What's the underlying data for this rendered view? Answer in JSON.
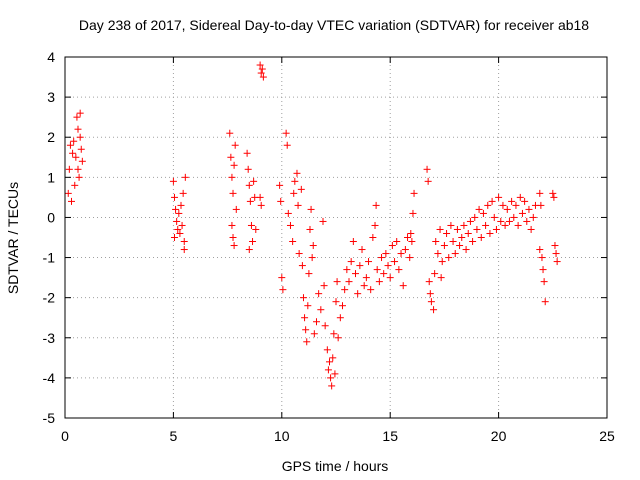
{
  "chart_data": {
    "type": "scatter",
    "title": "Day 238 of 2017, Sidereal Day-to-day VTEC variation (SDTVAR) for receiver ab18",
    "xlabel": "GPS time / hours",
    "ylabel": "SDTVAR / TECUs",
    "xlim": [
      0,
      25
    ],
    "ylim": [
      -5,
      4
    ],
    "xticks": [
      "0",
      "5",
      "10",
      "15",
      "20",
      "25"
    ],
    "yticks": [
      "-5",
      "-4",
      "-3",
      "-2",
      "-1",
      "0",
      "1",
      "2",
      "3",
      "4"
    ],
    "grid": true,
    "marker": "+",
    "color": "#ff0000",
    "series": [
      {
        "name": "SDTVAR",
        "points": [
          [
            0.15,
            0.6
          ],
          [
            0.2,
            1.2
          ],
          [
            0.25,
            1.8
          ],
          [
            0.3,
            0.4
          ],
          [
            0.35,
            1.6
          ],
          [
            0.4,
            1.9
          ],
          [
            0.45,
            0.8
          ],
          [
            0.5,
            1.5
          ],
          [
            0.55,
            2.5
          ],
          [
            0.6,
            2.2
          ],
          [
            0.65,
            1.0
          ],
          [
            0.7,
            2.0
          ],
          [
            0.75,
            1.7
          ],
          [
            0.8,
            1.4
          ],
          [
            0.7,
            2.6
          ],
          [
            0.6,
            1.2
          ],
          [
            5.0,
            0.9
          ],
          [
            5.05,
            0.5
          ],
          [
            5.1,
            0.2
          ],
          [
            5.15,
            -0.1
          ],
          [
            5.2,
            -0.3
          ],
          [
            5.25,
            0.1
          ],
          [
            5.3,
            -0.4
          ],
          [
            5.35,
            0.3
          ],
          [
            5.4,
            -0.2
          ],
          [
            5.45,
            0.6
          ],
          [
            5.5,
            -0.6
          ],
          [
            5.55,
            1.0
          ],
          [
            5.5,
            -0.8
          ],
          [
            5.05,
            -0.5
          ],
          [
            7.6,
            2.1
          ],
          [
            7.65,
            1.5
          ],
          [
            7.7,
            1.0
          ],
          [
            7.75,
            0.6
          ],
          [
            7.8,
            1.3
          ],
          [
            7.85,
            1.8
          ],
          [
            7.7,
            -0.2
          ],
          [
            7.75,
            -0.5
          ],
          [
            7.8,
            -0.7
          ],
          [
            7.9,
            0.2
          ],
          [
            8.4,
            1.6
          ],
          [
            8.45,
            1.2
          ],
          [
            8.5,
            0.8
          ],
          [
            8.55,
            0.4
          ],
          [
            8.6,
            -0.2
          ],
          [
            8.65,
            -0.6
          ],
          [
            8.7,
            0.9
          ],
          [
            8.75,
            0.5
          ],
          [
            8.8,
            -0.3
          ],
          [
            8.5,
            -0.8
          ],
          [
            9.0,
            3.8
          ],
          [
            9.05,
            3.6
          ],
          [
            9.1,
            3.7
          ],
          [
            9.15,
            3.5
          ],
          [
            9.0,
            0.5
          ],
          [
            9.05,
            0.3
          ],
          [
            9.9,
            0.8
          ],
          [
            9.95,
            0.4
          ],
          [
            10.0,
            -1.5
          ],
          [
            10.05,
            -1.8
          ],
          [
            10.2,
            2.1
          ],
          [
            10.25,
            1.8
          ],
          [
            10.3,
            0.1
          ],
          [
            10.4,
            -0.2
          ],
          [
            10.5,
            -0.6
          ],
          [
            10.55,
            0.6
          ],
          [
            10.6,
            0.9
          ],
          [
            10.7,
            1.1
          ],
          [
            10.75,
            0.3
          ],
          [
            10.8,
            -0.9
          ],
          [
            10.9,
            0.7
          ],
          [
            10.95,
            -1.2
          ],
          [
            11.0,
            -2.0
          ],
          [
            11.05,
            -2.5
          ],
          [
            11.1,
            -2.8
          ],
          [
            11.15,
            -3.1
          ],
          [
            11.2,
            -2.2
          ],
          [
            11.25,
            -1.4
          ],
          [
            11.3,
            -0.3
          ],
          [
            11.35,
            0.2
          ],
          [
            11.4,
            -1.0
          ],
          [
            11.45,
            -0.7
          ],
          [
            11.5,
            -2.9
          ],
          [
            11.6,
            -2.6
          ],
          [
            11.7,
            -1.9
          ],
          [
            11.8,
            -2.3
          ],
          [
            11.9,
            -0.1
          ],
          [
            11.95,
            -1.7
          ],
          [
            12.0,
            -2.7
          ],
          [
            12.1,
            -3.3
          ],
          [
            12.15,
            -3.8
          ],
          [
            12.2,
            -3.6
          ],
          [
            12.25,
            -4.0
          ],
          [
            12.3,
            -4.2
          ],
          [
            12.35,
            -3.5
          ],
          [
            12.4,
            -2.9
          ],
          [
            12.45,
            -3.9
          ],
          [
            12.5,
            -2.1
          ],
          [
            12.55,
            -1.6
          ],
          [
            12.6,
            -3.0
          ],
          [
            12.7,
            -2.5
          ],
          [
            12.8,
            -2.2
          ],
          [
            12.9,
            -1.8
          ],
          [
            13.0,
            -1.3
          ],
          [
            13.1,
            -1.6
          ],
          [
            13.2,
            -1.1
          ],
          [
            13.3,
            -0.6
          ],
          [
            13.4,
            -1.4
          ],
          [
            13.5,
            -1.9
          ],
          [
            13.6,
            -1.2
          ],
          [
            13.7,
            -0.8
          ],
          [
            13.8,
            -1.7
          ],
          [
            13.9,
            -1.5
          ],
          [
            14.0,
            -1.1
          ],
          [
            14.1,
            -1.8
          ],
          [
            14.2,
            -0.5
          ],
          [
            14.3,
            -0.2
          ],
          [
            14.35,
            0.3
          ],
          [
            14.4,
            -1.3
          ],
          [
            14.5,
            -1.6
          ],
          [
            14.6,
            -1.0
          ],
          [
            14.7,
            -1.4
          ],
          [
            14.8,
            -0.9
          ],
          [
            14.9,
            -1.2
          ],
          [
            15.0,
            -1.5
          ],
          [
            15.1,
            -0.7
          ],
          [
            15.2,
            -1.1
          ],
          [
            15.3,
            -0.6
          ],
          [
            15.4,
            -1.3
          ],
          [
            15.5,
            -0.9
          ],
          [
            15.6,
            -1.7
          ],
          [
            15.7,
            -0.8
          ],
          [
            15.8,
            -0.5
          ],
          [
            15.9,
            -1.0
          ],
          [
            15.95,
            -0.4
          ],
          [
            16.0,
            -0.6
          ],
          [
            16.05,
            0.1
          ],
          [
            16.1,
            0.6
          ],
          [
            16.7,
            1.2
          ],
          [
            16.75,
            0.9
          ],
          [
            16.8,
            -1.6
          ],
          [
            16.85,
            -1.9
          ],
          [
            16.9,
            -2.1
          ],
          [
            17.0,
            -2.3
          ],
          [
            17.05,
            -1.4
          ],
          [
            17.1,
            -0.6
          ],
          [
            17.2,
            -0.9
          ],
          [
            17.3,
            -0.3
          ],
          [
            17.35,
            -1.5
          ],
          [
            17.4,
            -1.1
          ],
          [
            17.5,
            -0.7
          ],
          [
            17.6,
            -0.4
          ],
          [
            17.7,
            -1.0
          ],
          [
            17.8,
            -0.2
          ],
          [
            17.9,
            -0.6
          ],
          [
            18.0,
            -0.9
          ],
          [
            18.1,
            -0.3
          ],
          [
            18.2,
            -0.7
          ],
          [
            18.3,
            -0.5
          ],
          [
            18.4,
            -0.2
          ],
          [
            18.5,
            -0.8
          ],
          [
            18.6,
            -0.4
          ],
          [
            18.7,
            -0.1
          ],
          [
            18.8,
            -0.6
          ],
          [
            18.9,
            0.0
          ],
          [
            19.0,
            -0.3
          ],
          [
            19.1,
            0.2
          ],
          [
            19.2,
            -0.5
          ],
          [
            19.3,
            0.1
          ],
          [
            19.4,
            -0.2
          ],
          [
            19.5,
            0.3
          ],
          [
            19.6,
            -0.4
          ],
          [
            19.7,
            0.4
          ],
          [
            19.8,
            0.0
          ],
          [
            19.9,
            -0.3
          ],
          [
            20.0,
            0.5
          ],
          [
            20.1,
            -0.1
          ],
          [
            20.2,
            0.3
          ],
          [
            20.3,
            -0.2
          ],
          [
            20.4,
            0.2
          ],
          [
            20.5,
            -0.1
          ],
          [
            20.6,
            0.4
          ],
          [
            20.7,
            0.0
          ],
          [
            20.8,
            0.3
          ],
          [
            20.9,
            -0.2
          ],
          [
            21.0,
            0.5
          ],
          [
            21.1,
            0.1
          ],
          [
            21.2,
            0.4
          ],
          [
            21.3,
            -0.1
          ],
          [
            21.4,
            0.2
          ],
          [
            21.5,
            -0.3
          ],
          [
            21.6,
            0.0
          ],
          [
            21.7,
            0.3
          ],
          [
            21.9,
            0.6
          ],
          [
            21.95,
            0.3
          ],
          [
            22.0,
            -1.0
          ],
          [
            22.05,
            -1.3
          ],
          [
            22.1,
            -1.6
          ],
          [
            22.15,
            -2.1
          ],
          [
            21.9,
            -0.8
          ],
          [
            22.5,
            0.6
          ],
          [
            22.55,
            0.5
          ],
          [
            22.6,
            -0.7
          ],
          [
            22.65,
            -0.9
          ],
          [
            22.7,
            -1.1
          ]
        ]
      }
    ]
  }
}
